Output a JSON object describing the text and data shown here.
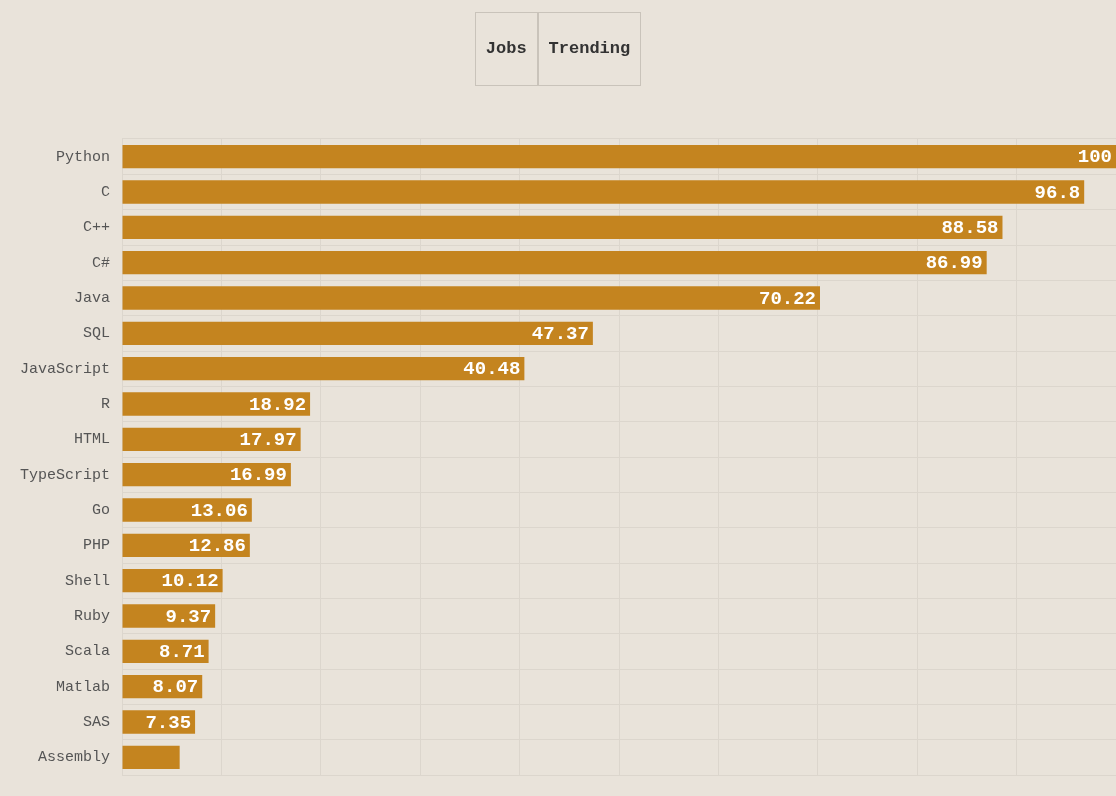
{
  "chart_data": {
    "type": "bar",
    "orientation": "horizontal",
    "categories": [
      "Python",
      "C",
      "C++",
      "C#",
      "Java",
      "SQL",
      "JavaScript",
      "R",
      "HTML",
      "TypeScript",
      "Go",
      "PHP",
      "Shell",
      "Ruby",
      "Scala",
      "Matlab",
      "SAS",
      "Assembly"
    ],
    "values": [
      100,
      96.8,
      88.58,
      86.99,
      70.22,
      47.37,
      40.48,
      18.92,
      17.97,
      16.99,
      13.06,
      12.86,
      10.12,
      9.37,
      8.71,
      8.07,
      7.35,
      5.8
    ],
    "value_labels": [
      "100",
      "96.8",
      "88.58",
      "86.99",
      "70.22",
      "47.37",
      "40.48",
      "18.92",
      "17.97",
      "16.99",
      "13.06",
      "12.86",
      "10.12",
      "9.37",
      "8.71",
      "8.07",
      "7.35",
      null
    ],
    "color": "#c4841f",
    "xlim": [
      0,
      100
    ],
    "xticks": [
      {
        "value": 0,
        "label": null
      },
      {
        "value": 10,
        "label": null
      },
      {
        "value": 20,
        "label": null
      },
      {
        "value": 30,
        "label": null
      },
      {
        "value": 40,
        "label": null
      },
      {
        "value": 50,
        "label": null
      },
      {
        "value": 60,
        "label": null
      },
      {
        "value": 70,
        "label": null
      },
      {
        "value": 80,
        "label": null
      },
      {
        "value": 90,
        "label": null
      }
    ],
    "tick_labels": "y",
    "grid": true,
    "legend": false,
    "annotations": [
      "Jobs",
      "Trending"
    ]
  }
}
